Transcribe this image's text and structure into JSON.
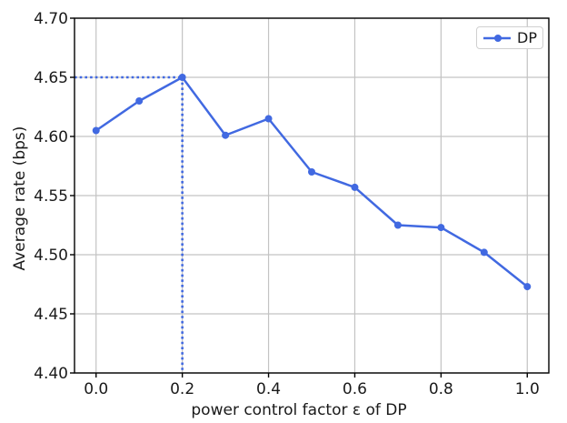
{
  "chart_data": {
    "type": "line",
    "title": "",
    "xlabel": "power control factor ε of DP",
    "ylabel": "Average rate (bps)",
    "x": [
      0.0,
      0.1,
      0.2,
      0.3,
      0.4,
      0.5,
      0.6,
      0.7,
      0.8,
      0.9,
      1.0
    ],
    "series": [
      {
        "name": "DP",
        "color": "#4169E1",
        "values": [
          4.605,
          4.63,
          4.65,
          4.601,
          4.615,
          4.57,
          4.557,
          4.525,
          4.523,
          4.502,
          4.473
        ]
      }
    ],
    "xlim": [
      -0.05,
      1.05
    ],
    "ylim": [
      4.4,
      4.7
    ],
    "xticks": {
      "values": [
        0.0,
        0.2,
        0.4,
        0.6,
        0.8,
        1.0
      ],
      "labels": [
        "0.0",
        "0.2",
        "0.4",
        "0.6",
        "0.8",
        "1.0"
      ]
    },
    "yticks": {
      "values": [
        4.4,
        4.45,
        4.5,
        4.55,
        4.6,
        4.65,
        4.7
      ],
      "labels": [
        "4.40",
        "4.45",
        "4.50",
        "4.55",
        "4.60",
        "4.65",
        "4.70"
      ]
    },
    "grid": true,
    "legend": {
      "position": "upper right",
      "entries": [
        "DP"
      ]
    },
    "annotations": [
      {
        "type": "guide_lines",
        "style": "dotted",
        "color": "#4169E1",
        "target_x": 0.2,
        "target_y": 4.65,
        "description": "dotted guide lines marking the maximum point (0.2, 4.65)"
      }
    ],
    "colors": {
      "line": "#4169E1",
      "grid": "#c3c3c3",
      "axis": "#000000",
      "background": "#ffffff"
    }
  }
}
